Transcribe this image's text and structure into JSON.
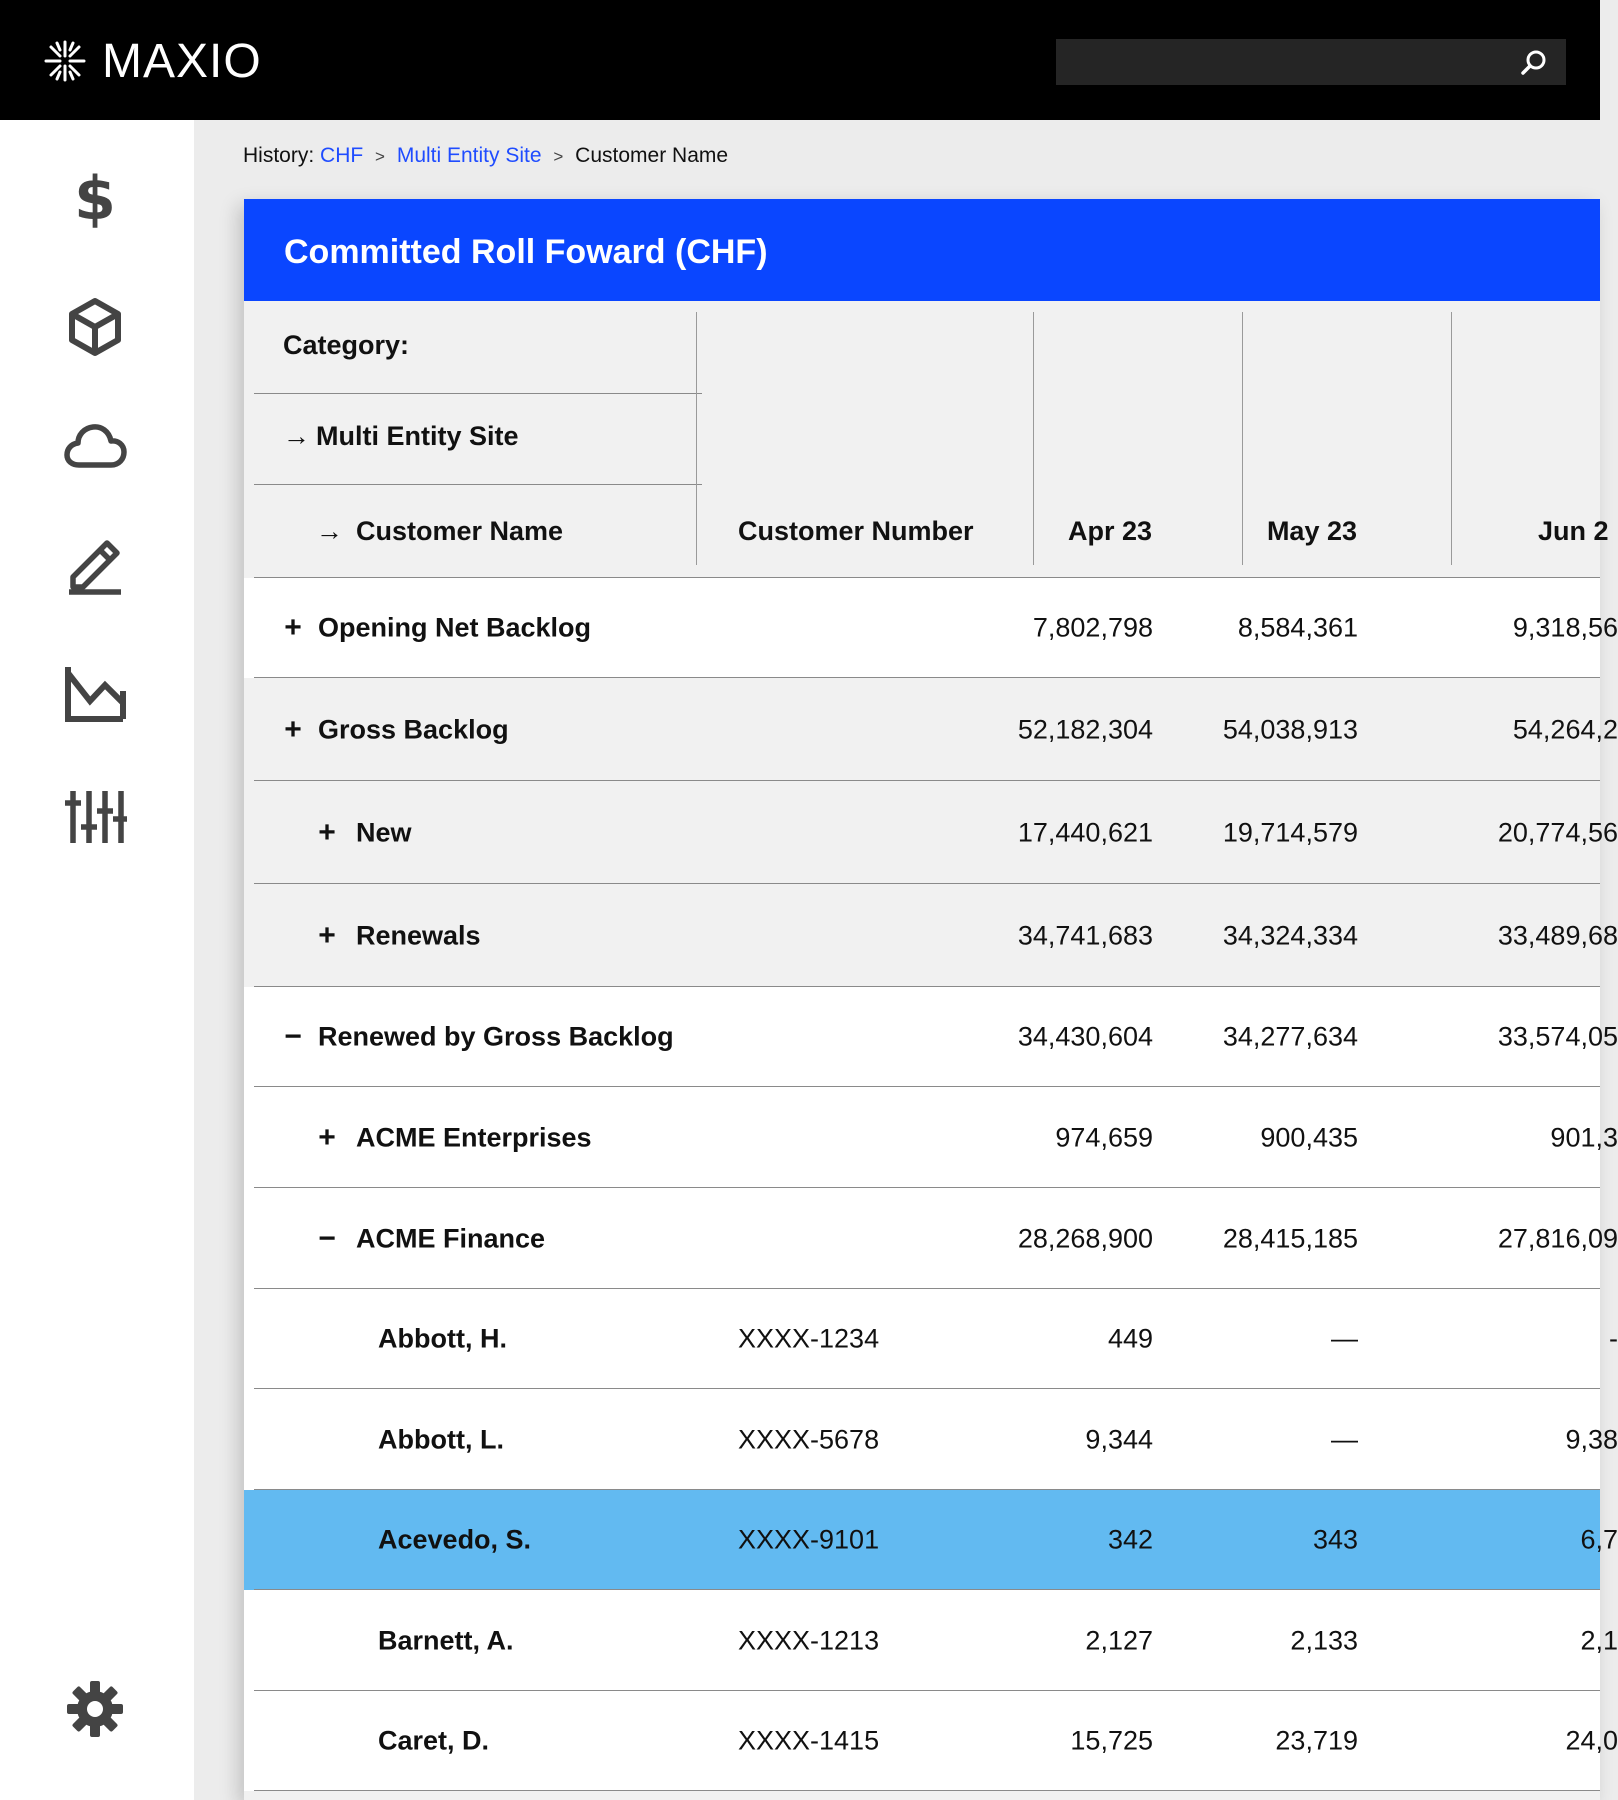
{
  "app": {
    "brand": "MAXIO",
    "search": {
      "placeholder": "",
      "value": ""
    }
  },
  "sidebar": {
    "items": [
      {
        "icon": "dollar-icon",
        "label": ""
      },
      {
        "icon": "cube-icon",
        "label": ""
      },
      {
        "icon": "cloud-icon",
        "label": ""
      },
      {
        "icon": "pencil-icon",
        "label": ""
      },
      {
        "icon": "chart-icon",
        "label": ""
      },
      {
        "icon": "sliders-icon",
        "label": ""
      }
    ],
    "settings_icon": "gear-icon"
  },
  "breadcrumb": {
    "prefix": "History:",
    "items": [
      "CHF",
      "Multi Entity Site",
      "Customer Name"
    ],
    "separator": ">"
  },
  "report": {
    "title": "Committed Roll Foward (CHF)",
    "category_label": "Category:",
    "level1": "Multi Entity Site",
    "level2": "Customer Name",
    "columns": [
      "Customer Number",
      "Apr 23",
      "May 23",
      "Jun 2"
    ],
    "rows": [
      {
        "sign": "+",
        "label": "Opening Net Backlog",
        "number": "",
        "values": [
          "7,802,798",
          "8,584,361",
          "9,318,56"
        ],
        "level": 0,
        "style": "white"
      },
      {
        "sign": "+",
        "label": "Gross Backlog",
        "number": "",
        "values": [
          "52,182,304",
          "54,038,913",
          "54,264,2"
        ],
        "level": 0,
        "style": "gray"
      },
      {
        "sign": "+",
        "label": "New",
        "number": "",
        "values": [
          "17,440,621",
          "19,714,579",
          "20,774,56"
        ],
        "level": 1,
        "style": "gray"
      },
      {
        "sign": "+",
        "label": "Renewals",
        "number": "",
        "values": [
          "34,741,683",
          "34,324,334",
          "33,489,68"
        ],
        "level": 1,
        "style": "gray"
      },
      {
        "sign": "−",
        "label": "Renewed by Gross Backlog",
        "number": "",
        "values": [
          "34,430,604",
          "34,277,634",
          "33,574,05"
        ],
        "level": 0,
        "style": "white"
      },
      {
        "sign": "+",
        "label": "ACME Enterprises",
        "number": "",
        "values": [
          "974,659",
          "900,435",
          "901,3"
        ],
        "level": 1,
        "style": "white"
      },
      {
        "sign": "−",
        "label": "ACME Finance",
        "number": "",
        "values": [
          "28,268,900",
          "28,415,185",
          "27,816,09"
        ],
        "level": 1,
        "style": "white"
      },
      {
        "sign": "",
        "label": "Abbott, H.",
        "number": "XXXX-1234",
        "values": [
          "449",
          "—",
          "-"
        ],
        "level": 2,
        "style": "white"
      },
      {
        "sign": "",
        "label": "Abbott, L.",
        "number": "XXXX-5678",
        "values": [
          "9,344",
          "—",
          "9,38"
        ],
        "level": 2,
        "style": "white"
      },
      {
        "sign": "",
        "label": "Acevedo, S.",
        "number": "XXXX-9101",
        "values": [
          "342",
          "343",
          "6,7"
        ],
        "level": 2,
        "style": "selected"
      },
      {
        "sign": "",
        "label": "Barnett, A.",
        "number": "XXXX-1213",
        "values": [
          "2,127",
          "2,133",
          "2,1"
        ],
        "level": 2,
        "style": "white"
      },
      {
        "sign": "",
        "label": "Caret, D.",
        "number": "XXXX-1415",
        "values": [
          "15,725",
          "23,719",
          "24,0"
        ],
        "level": 2,
        "style": "white"
      }
    ]
  },
  "colors": {
    "topbar": "#000000",
    "header_blue": "#0a46ff",
    "link_blue": "#1f4cff",
    "selected_row": "#62baf1"
  }
}
